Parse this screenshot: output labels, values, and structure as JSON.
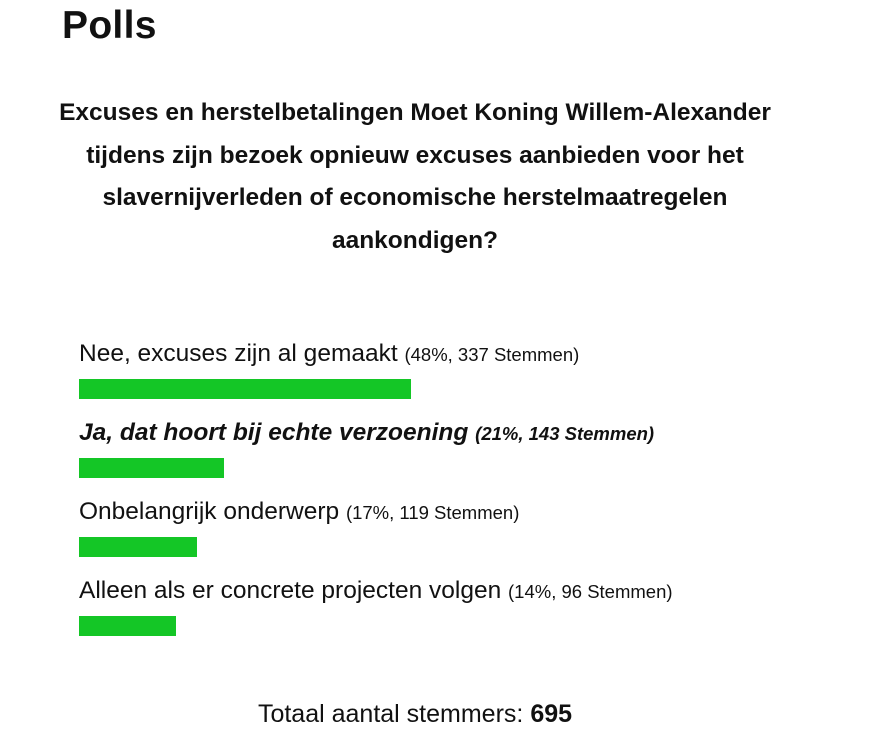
{
  "header": {
    "title": "Polls"
  },
  "poll": {
    "question": "Excuses en herstelbetalingen Moet Koning Willem-Alexander tijdens zijn bezoek opnieuw excuses aanbieden voor het slavernijverleden of economische herstelmaatregelen aankondigen?",
    "bar_color": "#14c626",
    "options": [
      {
        "label": "Nee, excuses zijn al gemaakt",
        "meta": "(48%, 337 Stemmen)",
        "percent": 48,
        "voted": false
      },
      {
        "label": "Ja, dat hoort bij echte verzoening",
        "meta": "(21%, 143 Stemmen)",
        "percent": 21,
        "voted": true
      },
      {
        "label": "Onbelangrijk onderwerp",
        "meta": "(17%, 119 Stemmen)",
        "percent": 17,
        "voted": false
      },
      {
        "label": "Alleen als er concrete projecten volgen",
        "meta": "(14%, 96 Stemmen)",
        "percent": 14,
        "voted": false
      }
    ],
    "total_label": "Totaal aantal stemmers:",
    "total_value": "695"
  }
}
